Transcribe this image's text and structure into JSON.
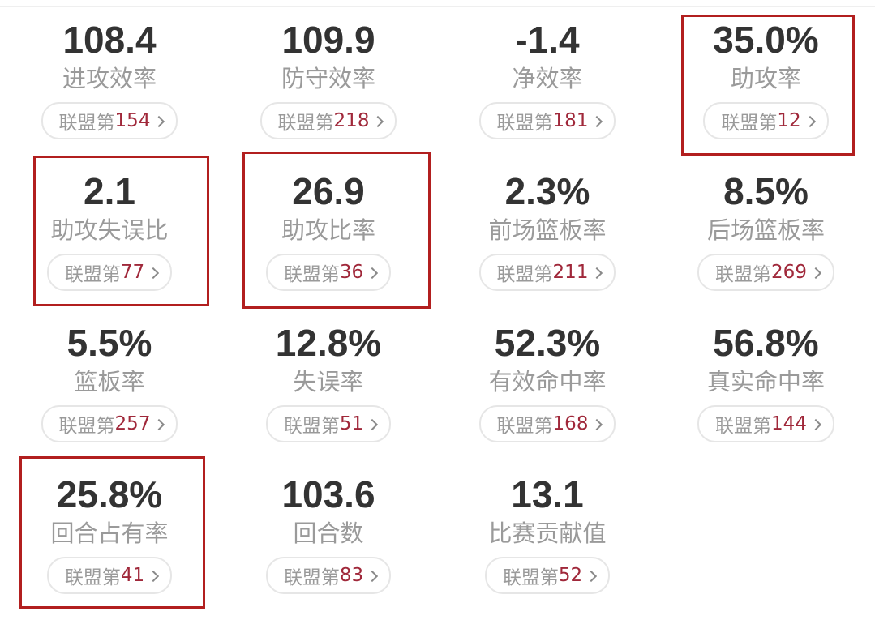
{
  "highlight_color": "#b21f1f",
  "rank_color": "#a0283a",
  "rank_prefix": "联盟第",
  "stats": [
    {
      "value": "108.4",
      "label": "进攻效率",
      "rank": "154"
    },
    {
      "value": "109.9",
      "label": "防守效率",
      "rank": "218"
    },
    {
      "value": "-1.4",
      "label": "净效率",
      "rank": "181"
    },
    {
      "value": "35.0%",
      "label": "助攻率",
      "rank": "12"
    },
    {
      "value": "2.1",
      "label": "助攻失误比",
      "rank": "77"
    },
    {
      "value": "26.9",
      "label": "助攻比率",
      "rank": "36"
    },
    {
      "value": "2.3%",
      "label": "前场篮板率",
      "rank": "211"
    },
    {
      "value": "8.5%",
      "label": "后场篮板率",
      "rank": "269"
    },
    {
      "value": "5.5%",
      "label": "篮板率",
      "rank": "257"
    },
    {
      "value": "12.8%",
      "label": "失误率",
      "rank": "51"
    },
    {
      "value": "52.3%",
      "label": "有效命中率",
      "rank": "168"
    },
    {
      "value": "56.8%",
      "label": "真实命中率",
      "rank": "144"
    },
    {
      "value": "25.8%",
      "label": "回合占有率",
      "rank": "41"
    },
    {
      "value": "103.6",
      "label": "回合数",
      "rank": "83"
    },
    {
      "value": "13.1",
      "label": "比赛贡献值",
      "rank": "52"
    }
  ]
}
